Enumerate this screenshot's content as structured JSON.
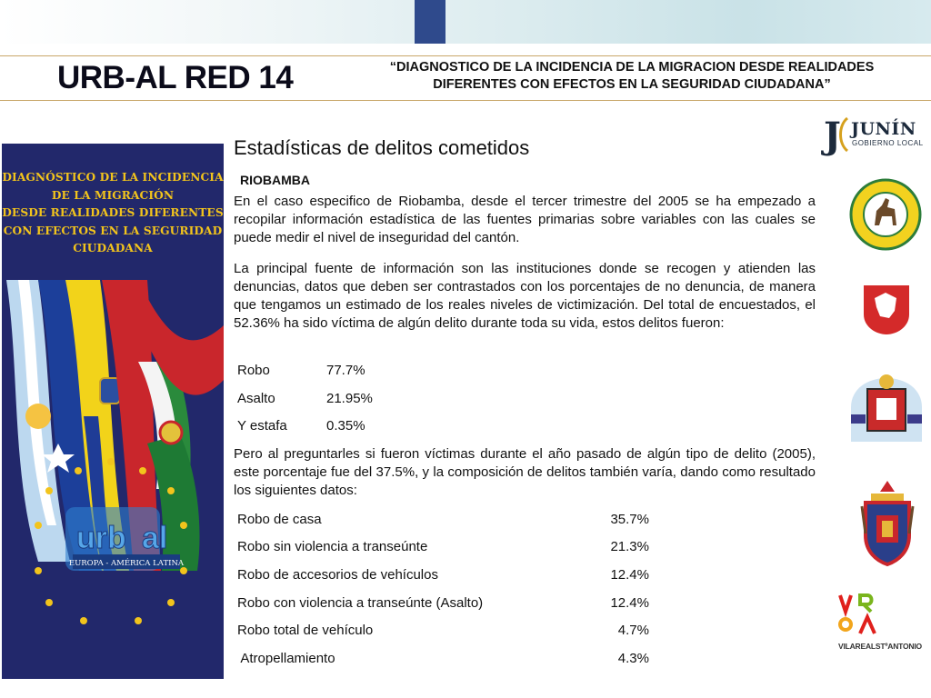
{
  "header": {
    "brand": "URB-AL RED 14",
    "title_line1": "“DIAGNOSTICO DE LA INCIDENCIA DE LA MIGRACION DESDE REALIDADES",
    "title_line2": "DIFERENTES CON EFECTOS EN LA SEGURIDAD CIUDADANA”"
  },
  "poster": {
    "lines": [
      "DIAGNÓSTICO DE LA INCIDENCIA",
      "DE LA MIGRACIÓN",
      "DESDE REALIDADES DIFERENTES",
      "CON EFECTOS EN LA  SEGURIDAD",
      "CIUDADANA"
    ],
    "logo_left": "urb",
    "logo_right": "al",
    "logo_band": "EUROPA - AMÉRICA LATINA"
  },
  "main": {
    "section_title": "Estadísticas de delitos cometidos",
    "city": "RIOBAMBA",
    "para1": "En el caso especifico de Riobamba, desde el tercer trimestre del 2005 se ha empezado a recopilar información estadística de las fuentes primarias sobre variables con las cuales se puede medir el nivel de inseguridad del cantón.",
    "para2": "La principal fuente de información son las instituciones donde se recogen y atienden las denuncias, datos que  deben ser contrastados con los porcentajes de no denuncia, de manera que  tengamos un estimado de los reales niveles de victimización. Del total de encuestados, el 52.36% ha sido víctima de algún delito durante toda su vida, estos delitos fueron:",
    "stats1": [
      {
        "label": "Robo",
        "value": "77.7%"
      },
      {
        "label": "Asalto",
        "value": "21.95%"
      },
      {
        "label": "Y estafa",
        "value": "0.35%"
      }
    ],
    "para3": "Pero al preguntarles si fueron víctimas durante  el año pasado de algún tipo de delito (2005), este porcentaje fue del 37.5%, y la composición de delitos también varía, dando como resultado los siguientes datos:",
    "stats2": [
      {
        "label": "Robo de casa",
        "value": "35.7%"
      },
      {
        "label": "Robo sin violencia a transeúnte",
        "value": "21.3%"
      },
      {
        "label": "Robo de accesorios de vehículos",
        "value": "12.4%"
      },
      {
        "label": "Robo con violencia a transeúnte (Asalto)",
        "value": "12.4%"
      },
      {
        "label": "Robo total de vehículo",
        "value": "4.7%"
      },
      {
        "label": " Atropellamiento",
        "value": "4.3%"
      }
    ]
  },
  "logos": {
    "junin_initial": "J",
    "junin_name": "JUNÍN",
    "junin_sub": "GOBIERNO LOCAL",
    "vila_text": "VILAREALSTºANTONIO"
  },
  "colors": {
    "poster_bg": "#22286b",
    "poster_title": "#f2c41c",
    "header_rule": "#c8a668",
    "topbar_tab": "#2f4a8c"
  }
}
